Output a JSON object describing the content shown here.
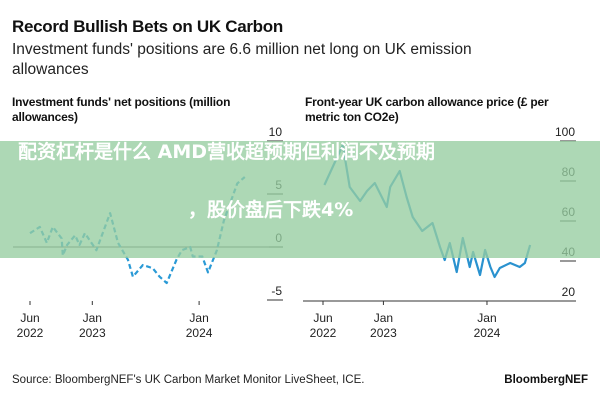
{
  "header": {
    "title": "Record Bullish Bets on UK Carbon",
    "subtitle": "Investment funds' positions are 6.6 million net long on UK emission allowances"
  },
  "chart_data": [
    {
      "type": "line",
      "title": "Investment funds' net positions (million allowances)",
      "line_style": "dashed",
      "color": "#2a9ad6",
      "ylim": [
        -5,
        10
      ],
      "y_ticks": [
        "10",
        "5",
        "0",
        "-5"
      ],
      "y_tick_values": [
        10,
        5,
        0,
        -5
      ],
      "x_ticks": [
        {
          "date": "2022-06-01",
          "label": [
            "Jun",
            "2022"
          ]
        },
        {
          "date": "2023-01-01",
          "label": [
            "Jan",
            "2023"
          ]
        },
        {
          "date": "2024-01-01",
          "label": [
            "Jan",
            "2024"
          ]
        }
      ],
      "baseline": 0,
      "points": [
        [
          "2022-06-01",
          1.3
        ],
        [
          "2022-07-04",
          1.9
        ],
        [
          "2022-07-28",
          0.4
        ],
        [
          "2022-08-18",
          1.9
        ],
        [
          "2022-09-18",
          0.8
        ],
        [
          "2022-09-22",
          -0.8
        ],
        [
          "2022-10-06",
          0.2
        ],
        [
          "2022-11-03",
          1.1
        ],
        [
          "2022-11-18",
          0.2
        ],
        [
          "2022-12-06",
          1.3
        ],
        [
          "2023-01-15",
          -0.3
        ],
        [
          "2023-03-01",
          3.2
        ],
        [
          "2023-03-28",
          0.4
        ],
        [
          "2023-05-01",
          -1.2
        ],
        [
          "2023-05-18",
          -2.8
        ],
        [
          "2023-06-22",
          -1.7
        ],
        [
          "2023-07-25",
          -2.0
        ],
        [
          "2023-08-18",
          -2.8
        ],
        [
          "2023-09-12",
          -3.4
        ],
        [
          "2023-10-15",
          -1.2
        ],
        [
          "2023-11-03",
          -0.3
        ],
        [
          "2023-12-01",
          0.0
        ],
        [
          "2023-12-10",
          -0.9
        ],
        [
          "2024-01-12",
          -0.9
        ],
        [
          "2024-02-01",
          -2.4
        ],
        [
          "2024-03-01",
          -0.3
        ],
        [
          "2024-03-25",
          2.5
        ],
        [
          "2024-05-10",
          6.0
        ],
        [
          "2024-06-05",
          6.6
        ]
      ]
    },
    {
      "type": "line",
      "title": "Front-year UK carbon allowance price (£ per metric ton CO2e)",
      "line_style": "solid",
      "color": "#2a92cf",
      "ylim": [
        20,
        100
      ],
      "y_ticks": [
        "100",
        "80",
        "60",
        "40",
        "20"
      ],
      "y_tick_values": [
        100,
        80,
        60,
        40,
        20
      ],
      "x_ticks": [
        {
          "date": "2022-06-01",
          "label": [
            "Jun",
            "2022"
          ]
        },
        {
          "date": "2023-01-01",
          "label": [
            "Jan",
            "2023"
          ]
        },
        {
          "date": "2024-01-01",
          "label": [
            "Jan",
            "2024"
          ]
        }
      ],
      "points": [
        [
          "2022-06-06",
          78
        ],
        [
          "2022-08-10",
          98
        ],
        [
          "2022-09-04",
          77
        ],
        [
          "2022-10-10",
          70
        ],
        [
          "2022-11-04",
          75
        ],
        [
          "2022-12-01",
          79
        ],
        [
          "2023-01-13",
          67
        ],
        [
          "2023-01-25",
          77
        ],
        [
          "2023-02-28",
          85
        ],
        [
          "2023-03-22",
          72
        ],
        [
          "2023-04-13",
          62
        ],
        [
          "2023-05-16",
          55
        ],
        [
          "2023-06-22",
          59
        ],
        [
          "2023-07-18",
          47
        ],
        [
          "2023-08-04",
          40.5
        ],
        [
          "2023-08-22",
          49
        ],
        [
          "2023-09-16",
          34.5
        ],
        [
          "2023-10-07",
          51.5
        ],
        [
          "2023-11-01",
          37
        ],
        [
          "2023-11-13",
          44.5
        ],
        [
          "2023-12-07",
          33
        ],
        [
          "2023-12-25",
          45.5
        ],
        [
          "2024-01-13",
          37
        ],
        [
          "2024-01-28",
          32
        ],
        [
          "2024-02-16",
          36.5
        ],
        [
          "2024-03-22",
          39
        ],
        [
          "2024-04-25",
          37
        ],
        [
          "2024-05-13",
          39
        ],
        [
          "2024-06-01",
          48
        ]
      ]
    }
  ],
  "footer": {
    "source": "Source: BloombergNEF's UK Carbon Market Monitor LiveSheet, ICE.",
    "brand": "BloombergNEF"
  },
  "overlay": {
    "line1": "配资杠杆是什么 AMD营收超预期但利润不及预期",
    "line2": "，股价盘后下跌4%"
  }
}
